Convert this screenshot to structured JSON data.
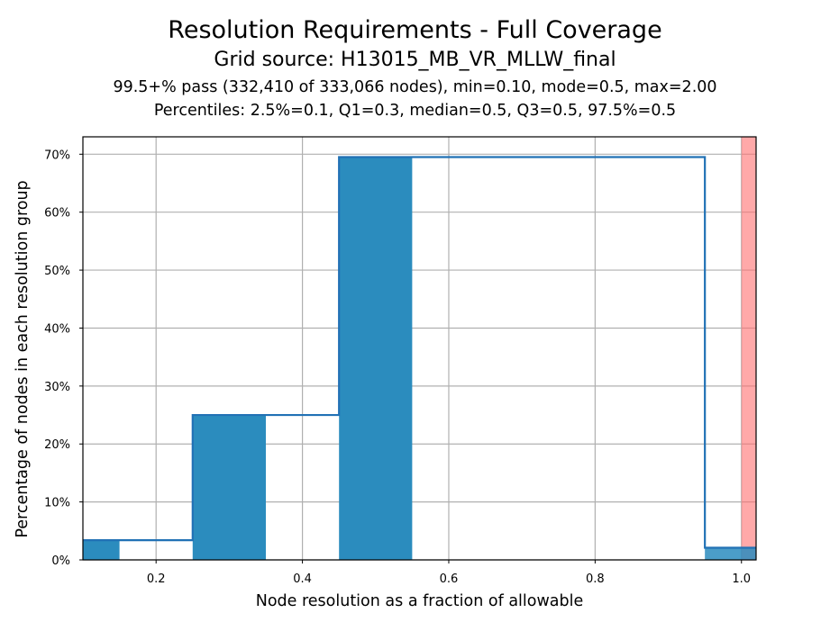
{
  "chart_data": {
    "type": "bar",
    "title": "Resolution Requirements - Full Coverage",
    "subtitle": "Grid source: H13015_MB_VR_MLLW_final",
    "info_lines": [
      "99.5+% pass (332,410 of 333,066 nodes), min=0.10, mode=0.5, max=2.00",
      "Percentiles: 2.5%=0.1, Q1=0.3, median=0.5, Q3=0.5, 97.5%=0.5"
    ],
    "xlabel": "Node resolution as a fraction of allowable",
    "ylabel": "Percentage of nodes in each resolution group",
    "xlim": [
      0.1,
      1.02
    ],
    "ylim": [
      0,
      73
    ],
    "xticks": [
      0.2,
      0.4,
      0.6,
      0.8,
      1.0
    ],
    "xtick_labels": [
      "0.2",
      "0.4",
      "0.6",
      "0.8",
      "1.0"
    ],
    "yticks": [
      0,
      10,
      20,
      30,
      40,
      50,
      60,
      70
    ],
    "ytick_labels": [
      "0%",
      "10%",
      "20%",
      "30%",
      "40%",
      "50%",
      "60%",
      "70%"
    ],
    "bars": [
      {
        "x0": 0.05,
        "x1": 0.15,
        "value": 3.4
      },
      {
        "x0": 0.25,
        "x1": 0.35,
        "value": 25.0
      },
      {
        "x0": 0.45,
        "x1": 0.55,
        "value": 69.5
      },
      {
        "x0": 0.95,
        "x1": 1.05,
        "value": 2.1
      }
    ],
    "cumulative_step": [
      {
        "x0": 0.05,
        "x1": 0.25,
        "value": 3.4
      },
      {
        "x0": 0.25,
        "x1": 0.45,
        "value": 25.0
      },
      {
        "x0": 0.45,
        "x1": 0.95,
        "value": 69.5
      },
      {
        "x0": 0.95,
        "x1": 1.02,
        "value": 2.1
      }
    ],
    "fail_region_start": 1.0,
    "grid": true,
    "colors": {
      "bar": "#2b8cbe",
      "step_line": "#2171b5",
      "fail_region": "#ff7070",
      "grid": "#b0b0b0"
    }
  }
}
